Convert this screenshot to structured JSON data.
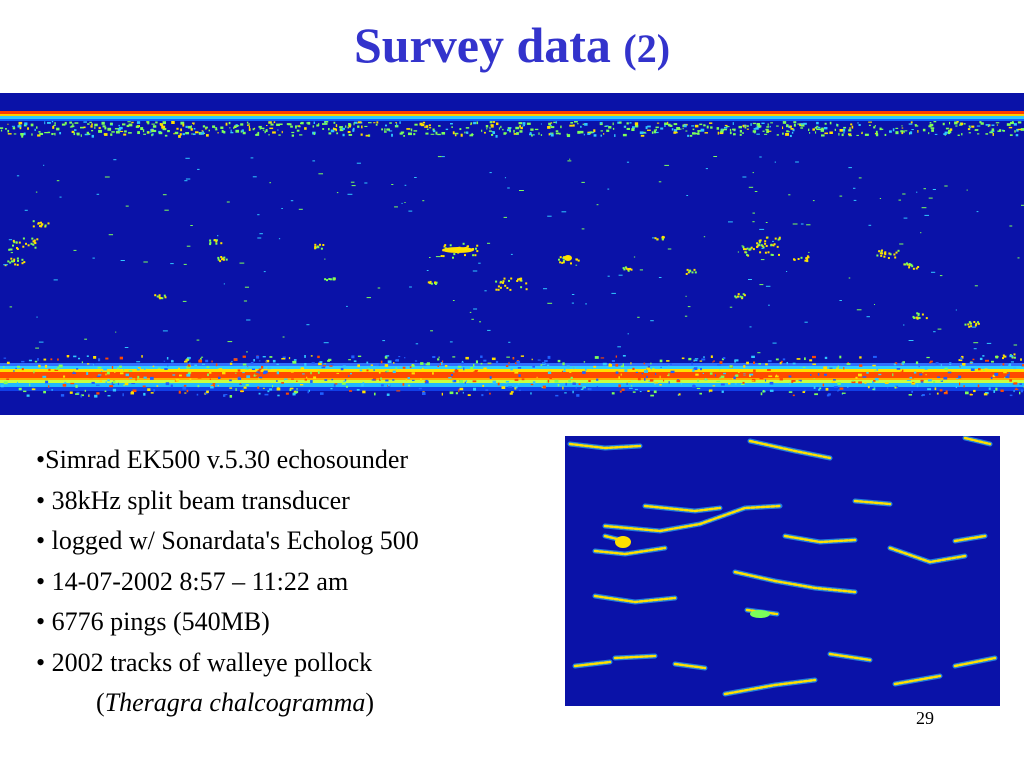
{
  "slide": {
    "title_main": "Survey data",
    "title_sub": "(2)",
    "page_number": "29"
  },
  "bullets": {
    "item1": "•Simrad EK500 v.5.30 echosounder",
    "item2": "• 38kHz split beam transducer",
    "item3": "• logged w/ Sonardata's Echolog 500",
    "item4": "• 14-07-2002  8:57 – 11:22 am",
    "item5": "• 6776 pings  (540MB)",
    "item6": "•  2002 tracks of walleye pollock",
    "species_open": "(",
    "species_name": "Theragra chalcogramma",
    "species_close": ")"
  },
  "colors": {
    "title": "#3333cc",
    "echogram_background": "#0a12a8",
    "echo_strong": "#ff2a00",
    "echo_medium": "#ffe000",
    "echo_weak": "#7cff5a"
  }
}
